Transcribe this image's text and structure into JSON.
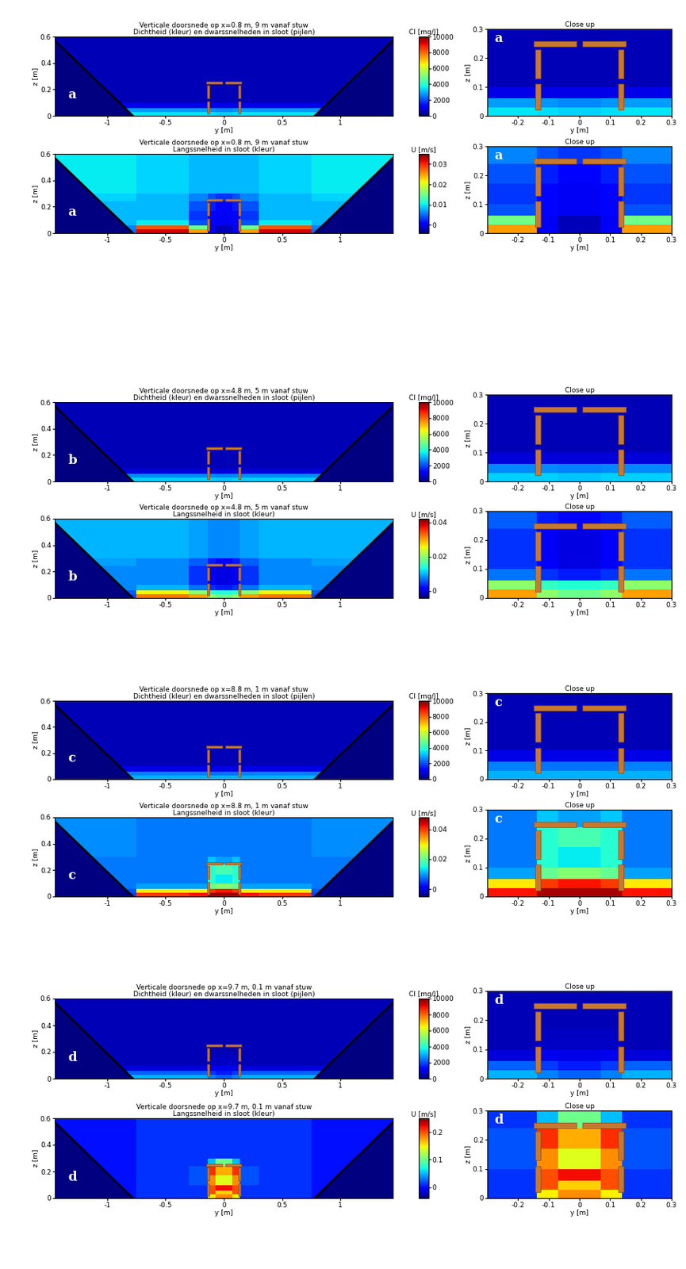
{
  "common": {
    "x_label": "y [m]",
    "y_label": "z [m]",
    "main_axes": {
      "xlim": [
        -1.45,
        1.45
      ],
      "xticks": [
        -1,
        -0.5,
        0,
        0.5,
        1
      ],
      "ylim": [
        0,
        0.6
      ],
      "yticks": [
        0,
        0.2,
        0.4,
        0.6
      ]
    },
    "closeup": {
      "title": "Close up",
      "xlim": [
        -0.3,
        0.3
      ],
      "xticks": [
        -0.2,
        -0.1,
        0,
        0.1,
        0.2,
        0.3
      ],
      "ylim": [
        0,
        0.3
      ],
      "yticks": [
        0,
        0.1,
        0.2,
        0.3
      ]
    },
    "y_edges": [
      -1.45,
      -0.75,
      -0.3,
      -0.14,
      -0.07,
      0,
      0.07,
      0.14,
      0.3,
      0.75,
      1.45
    ],
    "z_edges": [
      0,
      0.03,
      0.06,
      0.1,
      0.17,
      0.24,
      0.3,
      0.6
    ]
  },
  "chart_data": [
    {
      "type": "heatmap",
      "title": "Verticale doorsnede op x=0.8 m, 9 m vanaf stuw",
      "subtitle": "Dichtheid (kleur) en dwarssnelheden in sloot (pijlen)",
      "letter": "a",
      "closeup_letter": "a",
      "colorbar": {
        "label": "Cl [mg/l]",
        "range": [
          0,
          10000
        ],
        "ticks": [
          0,
          2000,
          4000,
          6000,
          8000,
          10000
        ]
      },
      "cells": [
        [
          3500,
          3500,
          3500,
          3400,
          3300,
          3300,
          3400,
          3500,
          3500,
          3500
        ],
        [
          2800,
          2800,
          2800,
          2700,
          2600,
          2600,
          2700,
          2800,
          2800,
          2800
        ],
        [
          900,
          900,
          900,
          900,
          900,
          900,
          900,
          900,
          900,
          900
        ],
        [
          500,
          500,
          500,
          500,
          500,
          500,
          500,
          500,
          500,
          500
        ],
        [
          500,
          500,
          500,
          500,
          500,
          500,
          500,
          500,
          500,
          500
        ],
        [
          500,
          500,
          500,
          500,
          500,
          500,
          500,
          500,
          500,
          500
        ],
        [
          500,
          500,
          500,
          500,
          500,
          500,
          500,
          500,
          500,
          500
        ]
      ]
    },
    {
      "type": "heatmap",
      "title": "Verticale doorsnede op x=0.8 m, 9 m vanaf stuw",
      "subtitle": "Langssnelheid in sloot (kleur)",
      "letter": "a",
      "closeup_letter": "a",
      "colorbar": {
        "label": "U [m/s]",
        "range": [
          -0.004,
          0.035
        ],
        "ticks": [
          0,
          0.01,
          0.02,
          0.03
        ]
      },
      "cells": [
        [
          0.005,
          0.032,
          0.025,
          0.0,
          -0.002,
          -0.002,
          0.0,
          0.025,
          0.032,
          0.005
        ],
        [
          0.006,
          0.028,
          0.015,
          0.0,
          -0.002,
          -0.002,
          0.0,
          0.015,
          0.028,
          0.006
        ],
        [
          0.008,
          0.01,
          0.004,
          0.001,
          0.0,
          0.0,
          0.001,
          0.004,
          0.01,
          0.008
        ],
        [
          0.008,
          0.008,
          0.003,
          0.001,
          0.0,
          0.0,
          0.001,
          0.003,
          0.008,
          0.008
        ],
        [
          0.008,
          0.008,
          0.004,
          0.002,
          0.001,
          0.001,
          0.002,
          0.004,
          0.008,
          0.008
        ],
        [
          0.009,
          0.008,
          0.006,
          0.004,
          0.003,
          0.003,
          0.004,
          0.006,
          0.008,
          0.009
        ],
        [
          0.01,
          0.009,
          0.008,
          0.008,
          0.008,
          0.008,
          0.008,
          0.008,
          0.009,
          0.01
        ]
      ]
    },
    {
      "type": "heatmap",
      "title": "Verticale doorsnede op x=4.8 m, 5 m vanaf stuw",
      "subtitle": "Dichtheid (kleur) en dwarssnelheden in sloot (pijlen)",
      "letter": "b",
      "colorbar": {
        "label": "Cl [mg/l]",
        "range": [
          0,
          10000
        ],
        "ticks": [
          0,
          2000,
          4000,
          6000,
          8000,
          10000
        ]
      },
      "cells": [
        [
          3300,
          3300,
          3300,
          3300,
          3200,
          3200,
          3300,
          3300,
          3300,
          3300
        ],
        [
          2600,
          2600,
          2600,
          2600,
          2500,
          2500,
          2600,
          2600,
          2600,
          2600
        ],
        [
          800,
          800,
          800,
          800,
          800,
          800,
          800,
          800,
          800,
          800
        ],
        [
          500,
          500,
          500,
          500,
          500,
          500,
          500,
          500,
          500,
          500
        ],
        [
          500,
          500,
          500,
          500,
          500,
          500,
          500,
          500,
          500,
          500
        ],
        [
          500,
          500,
          500,
          500,
          500,
          500,
          500,
          500,
          500,
          500
        ],
        [
          500,
          500,
          500,
          500,
          500,
          500,
          500,
          500,
          500,
          500
        ]
      ]
    },
    {
      "type": "heatmap",
      "title": "Verticale doorsnede op x=4.8 m, 5 m vanaf stuw",
      "subtitle": "Langssnelheid in sloot (kleur)",
      "letter": "b",
      "colorbar": {
        "label": "U [m/s]",
        "range": [
          -0.004,
          0.042
        ],
        "ticks": [
          0,
          0.02,
          0.04
        ]
      },
      "cells": [
        [
          0.005,
          0.032,
          0.03,
          0.02,
          0.018,
          0.018,
          0.02,
          0.03,
          0.032,
          0.005
        ],
        [
          0.006,
          0.026,
          0.02,
          0.015,
          0.014,
          0.014,
          0.015,
          0.02,
          0.026,
          0.006
        ],
        [
          0.008,
          0.01,
          0.007,
          0.004,
          0.003,
          0.003,
          0.004,
          0.007,
          0.01,
          0.008
        ],
        [
          0.008,
          0.008,
          0.004,
          0.001,
          0.0,
          0.0,
          0.001,
          0.004,
          0.008,
          0.008
        ],
        [
          0.008,
          0.008,
          0.004,
          0.001,
          0.0,
          0.0,
          0.001,
          0.004,
          0.008,
          0.008
        ],
        [
          0.009,
          0.008,
          0.006,
          0.003,
          0.002,
          0.002,
          0.003,
          0.006,
          0.008,
          0.009
        ],
        [
          0.01,
          0.01,
          0.009,
          0.008,
          0.008,
          0.008,
          0.008,
          0.009,
          0.01,
          0.01
        ]
      ]
    },
    {
      "type": "heatmap",
      "title": "Verticale doorsnede op x=8.8 m, 1 m vanaf stuw",
      "subtitle": "Dichtheid (kleur) en dwarssnelheden in sloot (pijlen)",
      "letter": "c",
      "closeup_letter": "c",
      "colorbar": {
        "label": "Cl [mg/l]",
        "range": [
          0,
          10000
        ],
        "ticks": [
          0,
          2000,
          4000,
          6000,
          8000,
          10000
        ]
      },
      "cells": [
        [
          3000,
          3000,
          3000,
          3000,
          3000,
          3000,
          3000,
          3000,
          3000,
          3000
        ],
        [
          2500,
          2500,
          2500,
          2400,
          2400,
          2400,
          2400,
          2500,
          2500,
          2500
        ],
        [
          900,
          900,
          900,
          900,
          900,
          900,
          900,
          900,
          900,
          900
        ],
        [
          500,
          500,
          500,
          500,
          500,
          500,
          500,
          500,
          500,
          500
        ],
        [
          500,
          500,
          500,
          500,
          500,
          500,
          500,
          500,
          500,
          500
        ],
        [
          500,
          500,
          500,
          500,
          500,
          500,
          500,
          500,
          500,
          500
        ],
        [
          500,
          500,
          500,
          500,
          500,
          500,
          500,
          500,
          500,
          500
        ]
      ]
    },
    {
      "type": "heatmap",
      "title": "Verticale doorsnede op x=8.8 m, 1 m vanaf stuw",
      "subtitle": "Langssnelheid in sloot (kleur)",
      "letter": "c",
      "closeup_letter": "c",
      "colorbar": {
        "label": "U [m/s]",
        "range": [
          -0.005,
          0.048
        ],
        "ticks": [
          0,
          0.02,
          0.04
        ]
      },
      "cells": [
        [
          0.005,
          0.04,
          0.042,
          0.046,
          0.046,
          0.046,
          0.046,
          0.042,
          0.04,
          0.005
        ],
        [
          0.006,
          0.03,
          0.03,
          0.04,
          0.042,
          0.042,
          0.04,
          0.03,
          0.03,
          0.006
        ],
        [
          0.008,
          0.01,
          0.01,
          0.02,
          0.022,
          0.022,
          0.02,
          0.01,
          0.01,
          0.008
        ],
        [
          0.008,
          0.008,
          0.008,
          0.016,
          0.014,
          0.014,
          0.016,
          0.008,
          0.008,
          0.008
        ],
        [
          0.008,
          0.008,
          0.008,
          0.016,
          0.018,
          0.018,
          0.016,
          0.008,
          0.008,
          0.008
        ],
        [
          0.008,
          0.008,
          0.008,
          0.012,
          0.01,
          0.01,
          0.012,
          0.008,
          0.008,
          0.008
        ],
        [
          0.009,
          0.008,
          0.008,
          0.008,
          0.008,
          0.008,
          0.008,
          0.008,
          0.008,
          0.009
        ]
      ]
    },
    {
      "type": "heatmap",
      "title": "Verticale doorsnede op x=9.7 m, 0.1 m vanaf stuw",
      "subtitle": "Dichtheid (kleur) en dwarssnelheden in sloot (pijlen)",
      "letter": "d",
      "closeup_letter": "d",
      "colorbar": {
        "label": "Cl [mg/l]",
        "range": [
          0,
          10000
        ],
        "ticks": [
          0,
          2000,
          4000,
          6000,
          8000,
          10000
        ]
      },
      "cells": [
        [
          3000,
          3000,
          3000,
          2500,
          2200,
          2200,
          2500,
          3000,
          3000,
          3000
        ],
        [
          2200,
          2200,
          2200,
          1800,
          1500,
          1500,
          1800,
          2200,
          2200,
          2200
        ],
        [
          800,
          800,
          800,
          1000,
          900,
          900,
          1000,
          800,
          800,
          800
        ],
        [
          500,
          500,
          500,
          600,
          600,
          600,
          600,
          500,
          500,
          500
        ],
        [
          500,
          500,
          500,
          500,
          500,
          500,
          500,
          500,
          500,
          500
        ],
        [
          500,
          500,
          500,
          500,
          500,
          500,
          500,
          500,
          500,
          500
        ],
        [
          500,
          500,
          500,
          500,
          500,
          500,
          500,
          500,
          500,
          500
        ]
      ]
    },
    {
      "type": "heatmap",
      "title": "Verticale doorsnede op x=9.7 m, 0.1 m vanaf stuw",
      "subtitle": "Langssnelheid in sloot (kleur)",
      "letter": "d",
      "closeup_letter": "d",
      "colorbar": {
        "label": "U [m/s]",
        "range": [
          -0.04,
          0.25
        ],
        "ticks": [
          0,
          0.1,
          0.2
        ]
      },
      "cells": [
        [
          0.0,
          0.01,
          0.01,
          0.15,
          0.18,
          0.18,
          0.15,
          0.01,
          0.01,
          0.0
        ],
        [
          0.0,
          0.01,
          0.01,
          0.2,
          0.16,
          0.16,
          0.2,
          0.01,
          0.01,
          0.0
        ],
        [
          0.0,
          0.01,
          0.01,
          0.2,
          0.22,
          0.22,
          0.2,
          0.01,
          0.01,
          0.0
        ],
        [
          0.0,
          0.01,
          0.02,
          0.18,
          0.14,
          0.14,
          0.18,
          0.02,
          0.01,
          0.0
        ],
        [
          0.0,
          0.01,
          0.02,
          0.21,
          0.17,
          0.17,
          0.21,
          0.02,
          0.01,
          0.0
        ],
        [
          0.0,
          0.01,
          0.01,
          0.05,
          0.1,
          0.1,
          0.05,
          0.01,
          0.01,
          0.0
        ],
        [
          0.0,
          0.01,
          0.01,
          0.01,
          0.01,
          0.01,
          0.01,
          0.01,
          0.01,
          0.0
        ]
      ]
    }
  ]
}
